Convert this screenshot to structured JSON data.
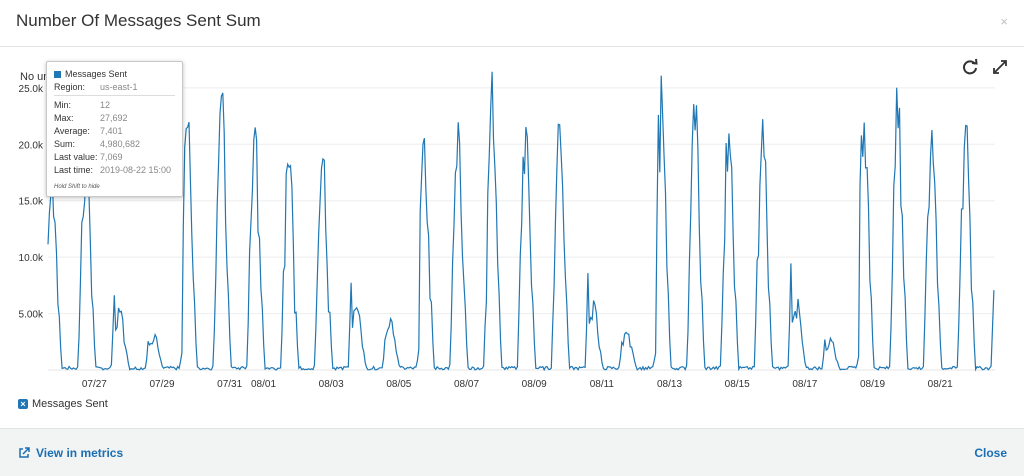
{
  "dialog": {
    "title": "Number Of Messages Sent Sum",
    "close_glyph": "×",
    "unit_label": "No unit"
  },
  "toolbar": {
    "refresh_icon": "refresh-icon",
    "expand_icon": "expand-icon"
  },
  "legend": {
    "label": "Messages Sent",
    "color": "#1f77b4"
  },
  "tooltip": {
    "series": "Messages Sent",
    "region_label": "Region:",
    "region": "us-east-1",
    "min_label": "Min:",
    "min": "12",
    "max_label": "Max:",
    "max": "27,692",
    "avg_label": "Average:",
    "avg": "7,401",
    "sum_label": "Sum:",
    "sum": "4,980,682",
    "last_value_label": "Last value:",
    "last_value": "7,069",
    "last_time_label": "Last time:",
    "last_time": "2019-08-22 15:00",
    "note": "Hold Shift to hide"
  },
  "footer": {
    "view_in_metrics": "View in metrics",
    "close": "Close"
  },
  "chart_data": {
    "type": "line",
    "ylabel": "No unit",
    "ylim": [
      0,
      28000
    ],
    "y_ticks": [
      "5.00k",
      "10.0k",
      "15.0k",
      "20.0k",
      "25.0k"
    ],
    "y_tick_values": [
      5000,
      10000,
      15000,
      20000,
      25000
    ],
    "x_ticks": [
      "07/27",
      "07/29",
      "07/31",
      "08/01",
      "08/03",
      "08/05",
      "08/07",
      "08/09",
      "08/11",
      "08/13",
      "08/15",
      "08/17",
      "08/19",
      "08/21"
    ],
    "x_tick_days": [
      1,
      3,
      5,
      6,
      8,
      10,
      12,
      14,
      16,
      18,
      20,
      22,
      24,
      26
    ],
    "x_range_days": [
      -0.37,
      27.62
    ],
    "series": [
      {
        "name": "Messages Sent",
        "color": "#1f77b4",
        "daily_peaks": [
          19000,
          21500,
          5800,
          3500,
          23500,
          26500,
          22000,
          20500,
          20500,
          6500,
          4500,
          24000,
          22000,
          27000,
          23500,
          23500,
          6500,
          3500,
          27000,
          25000,
          24500,
          23500,
          6500,
          3000,
          25500,
          26000,
          23000,
          24000
        ],
        "end_value": 7069
      }
    ]
  }
}
